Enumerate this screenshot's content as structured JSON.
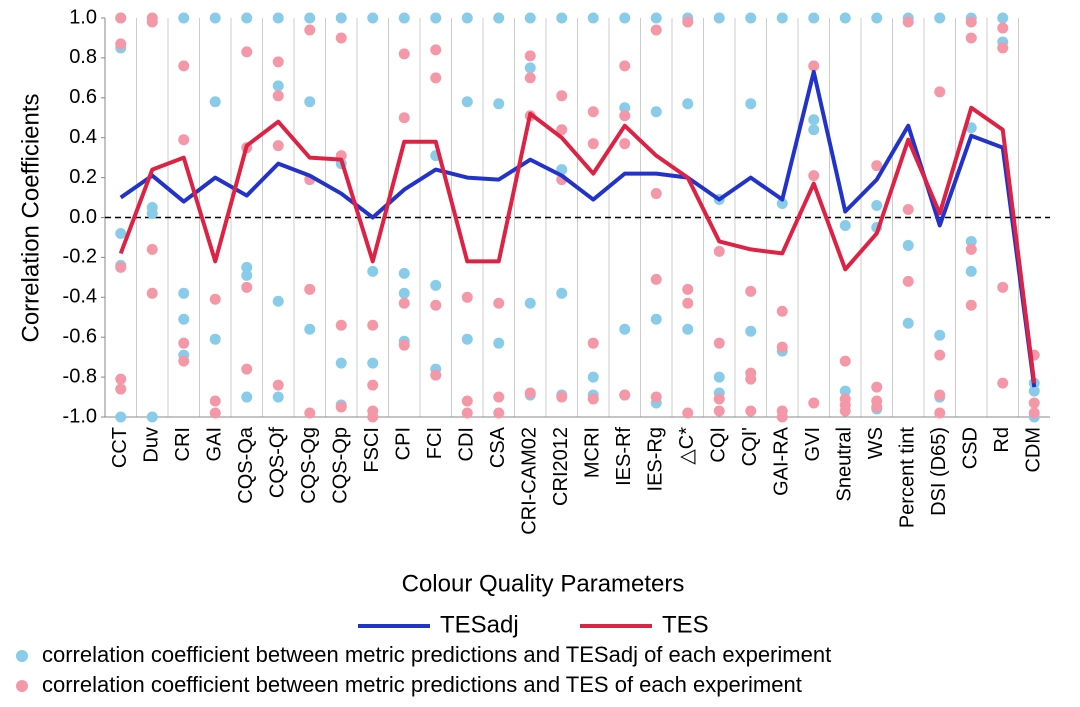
{
  "chart_data": {
    "type": "line",
    "x_label": "Colour Quality Parameters",
    "y_label": "Correlation Coefficients",
    "categories": [
      "CCT",
      "Duv",
      "CRI",
      "GAI",
      "CQS-Qa",
      "CQS-Qf",
      "CQS-Qg",
      "CQS-Qp",
      "FSCI",
      "CPI",
      "FCI",
      "CDI",
      "CSA",
      "CRI-CAM02",
      "CRI2012",
      "MCRI",
      "IES-Rf",
      "IES-Rg",
      "△C*",
      "CQI",
      "CQI'",
      "GAI-RA",
      "GVI",
      "Sneutral",
      "WS",
      "Percent tint",
      "DSI (D65)",
      "CSD",
      "Rd",
      "CDM"
    ],
    "ylim": [
      -1.0,
      1.0
    ],
    "yticks": [
      {
        "value": -1.0,
        "label": "-1.0"
      },
      -0.8,
      -0.6,
      -0.4,
      -0.2,
      {
        "value": 0,
        "label": "0.0"
      },
      0.2,
      0.4,
      0.6,
      0.8,
      {
        "value": 1.0,
        "label": "1.0"
      }
    ],
    "series": [
      {
        "name": "TESadj",
        "color": "#2233cc",
        "values": [
          0.1,
          0.21,
          0.08,
          0.2,
          0.11,
          0.27,
          0.21,
          0.12,
          0.0,
          0.14,
          0.24,
          0.2,
          0.19,
          0.29,
          0.21,
          0.09,
          0.22,
          0.22,
          0.2,
          0.09,
          0.2,
          0.09,
          0.73,
          0.03,
          0.19,
          0.46,
          -0.04,
          0.41,
          0.35,
          -0.85
        ]
      },
      {
        "name": "TES",
        "color": "#dd2244",
        "values": [
          -0.18,
          0.24,
          0.3,
          -0.22,
          0.36,
          0.48,
          0.3,
          0.29,
          -0.22,
          0.38,
          0.38,
          -0.22,
          -0.22,
          0.52,
          0.4,
          0.22,
          0.46,
          0.31,
          0.2,
          -0.12,
          -0.16,
          -0.18,
          0.17,
          -0.26,
          -0.08,
          0.39,
          0.02,
          0.55,
          0.44,
          -0.83
        ]
      }
    ],
    "dot_series": [
      {
        "name": "correlation coefficient between metric predictions and TESadj of each experiment",
        "color": "#88ccea",
        "values": [
          [
            1.0,
            0.85,
            -0.08,
            -0.24,
            -1.0
          ],
          [
            0.05,
            0.02,
            -1.0
          ],
          [
            1.0,
            -0.38,
            -0.51,
            -0.69
          ],
          [
            1.0,
            0.58,
            -0.61
          ],
          [
            1.0,
            -0.25,
            -0.29,
            -0.9
          ],
          [
            1.0,
            0.66,
            -0.42,
            -0.9
          ],
          [
            1.0,
            0.58,
            -0.56
          ],
          [
            1.0,
            0.27,
            -0.73,
            -0.94
          ],
          [
            1.0,
            -0.27,
            -0.73
          ],
          [
            1.0,
            -0.28,
            -0.38,
            -0.62
          ],
          [
            1.0,
            0.31,
            -0.34,
            -0.76
          ],
          [
            1.0,
            0.58,
            -0.61
          ],
          [
            1.0,
            0.57,
            -0.63
          ],
          [
            1.0,
            0.75,
            -0.43,
            -0.89
          ],
          [
            1.0,
            0.24,
            -0.38,
            -0.89
          ],
          [
            1.0,
            -0.8,
            -0.89
          ],
          [
            1.0,
            0.55,
            -0.56,
            -0.89
          ],
          [
            1.0,
            0.53,
            -0.51,
            -0.93
          ],
          [
            1.0,
            0.57,
            -0.56
          ],
          [
            1.0,
            0.09,
            -0.8,
            -0.88
          ],
          [
            1.0,
            0.57,
            -0.57
          ],
          [
            1.0,
            0.07,
            -0.67
          ],
          [
            1.0,
            0.49,
            0.44
          ],
          [
            1.0,
            -0.04,
            -0.87
          ],
          [
            1.0,
            0.06,
            -0.05,
            -0.96
          ],
          [
            1.0,
            -0.14,
            -0.53
          ],
          [
            1.0,
            -0.59,
            -0.9
          ],
          [
            1.0,
            0.45,
            -0.12,
            -0.27
          ],
          [
            1.0,
            0.88
          ],
          [
            -0.83,
            -0.87,
            -1.0
          ]
        ]
      },
      {
        "name": "correlation coefficient between metric predictions and TES of each experiment",
        "color": "#f498a8",
        "values": [
          [
            1.0,
            0.87,
            -0.25,
            -0.81,
            -0.86
          ],
          [
            1.0,
            0.98,
            -0.16,
            -0.38
          ],
          [
            0.76,
            0.39,
            -0.63,
            -0.72
          ],
          [
            -0.41,
            -0.92,
            -0.98
          ],
          [
            0.83,
            0.35,
            -0.35,
            -0.76
          ],
          [
            0.78,
            0.61,
            0.36,
            -0.84
          ],
          [
            0.94,
            0.19,
            -0.36,
            -0.98
          ],
          [
            0.9,
            0.31,
            -0.54,
            -0.95
          ],
          [
            -0.54,
            -0.84,
            -0.97,
            -1.0
          ],
          [
            0.82,
            0.5,
            -0.43,
            -0.64
          ],
          [
            0.84,
            0.7,
            -0.44,
            -0.79
          ],
          [
            -0.4,
            -0.92,
            -0.98
          ],
          [
            -0.43,
            -0.9,
            -0.98
          ],
          [
            0.81,
            0.7,
            0.51,
            -0.88
          ],
          [
            0.61,
            0.44,
            0.19,
            -0.9
          ],
          [
            0.53,
            0.37,
            -0.63,
            -0.91
          ],
          [
            0.76,
            0.51,
            0.37,
            -0.89
          ],
          [
            0.94,
            0.12,
            -0.31,
            -0.9
          ],
          [
            0.98,
            -0.36,
            -0.43,
            -0.98
          ],
          [
            -0.17,
            -0.63,
            -0.91,
            -0.97
          ],
          [
            -0.37,
            -0.78,
            -0.81,
            -0.97
          ],
          [
            -0.47,
            -0.65,
            -0.97,
            -1.0
          ],
          [
            0.76,
            0.21,
            -0.93
          ],
          [
            -0.72,
            -0.91,
            -0.94,
            -0.97
          ],
          [
            0.26,
            -0.85,
            -0.92,
            -0.95
          ],
          [
            0.98,
            0.04,
            -0.32
          ],
          [
            0.63,
            -0.69,
            -0.89,
            -0.98
          ],
          [
            0.98,
            0.9,
            -0.16,
            -0.44
          ],
          [
            0.95,
            0.85,
            -0.35,
            -0.83
          ],
          [
            -0.69,
            -0.93,
            -0.98
          ]
        ]
      }
    ],
    "zero_line": true,
    "grid": true
  }
}
